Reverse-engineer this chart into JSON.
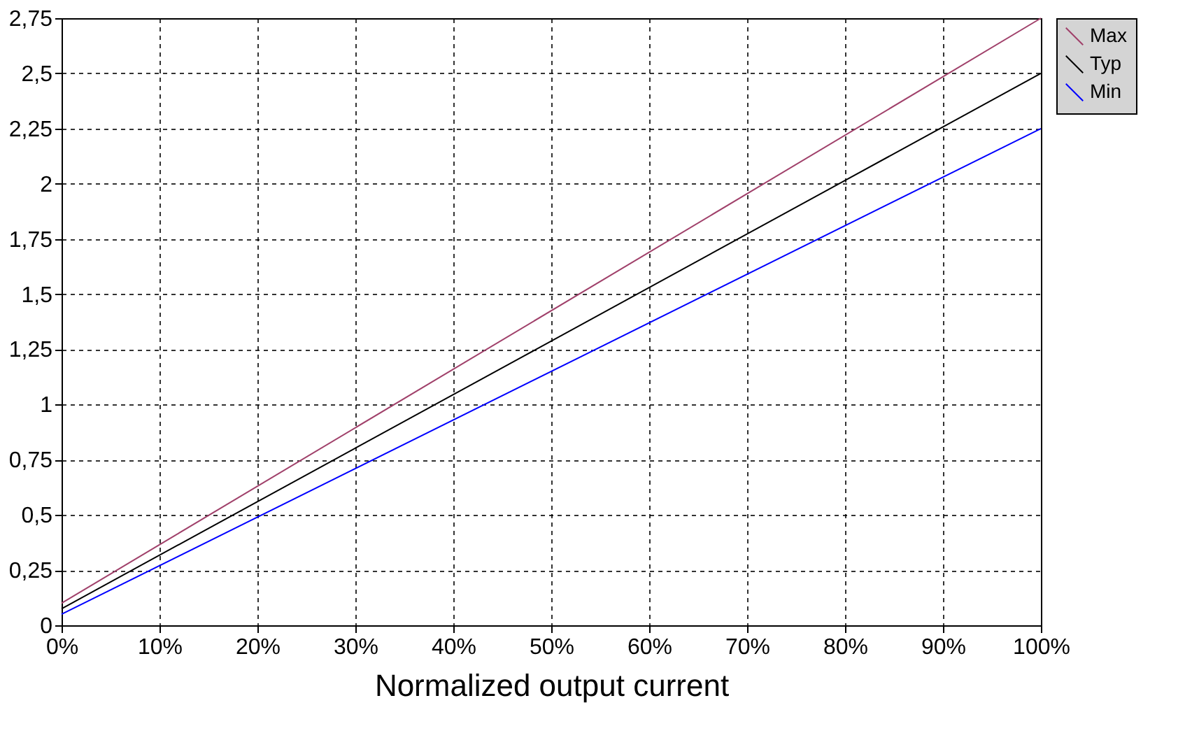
{
  "chart_data": {
    "type": "line",
    "xlabel": "Normalized output current",
    "x": [
      0,
      100
    ],
    "series": [
      {
        "name": "Max",
        "color": "#a0406a",
        "values": [
          0.1,
          2.75
        ]
      },
      {
        "name": "Typ",
        "color": "#000000",
        "values": [
          0.075,
          2.5
        ]
      },
      {
        "name": "Min",
        "color": "#0000ff",
        "values": [
          0.05,
          2.25
        ]
      }
    ],
    "xlim": [
      0,
      100
    ],
    "xticks": [
      {
        "value": 0,
        "label": "0%"
      },
      {
        "value": 10,
        "label": "10%"
      },
      {
        "value": 20,
        "label": "20%"
      },
      {
        "value": 30,
        "label": "30%"
      },
      {
        "value": 40,
        "label": "40%"
      },
      {
        "value": 50,
        "label": "50%"
      },
      {
        "value": 60,
        "label": "60%"
      },
      {
        "value": 70,
        "label": "70%"
      },
      {
        "value": 80,
        "label": "80%"
      },
      {
        "value": 90,
        "label": "90%"
      },
      {
        "value": 100,
        "label": "100%"
      }
    ],
    "ylim": [
      0,
      2.75
    ],
    "yticks": [
      0,
      {
        "value": 0.25,
        "label": "0,25"
      },
      {
        "value": 0.5,
        "label": "0,5"
      },
      {
        "value": 0.75,
        "label": "0,75"
      },
      1,
      {
        "value": 1.25,
        "label": "1,25"
      },
      {
        "value": 1.5,
        "label": "1,5"
      },
      {
        "value": 1.75,
        "label": "1,75"
      },
      2,
      {
        "value": 2.25,
        "label": "2,25"
      },
      {
        "value": 2.5,
        "label": "2,5"
      },
      {
        "value": 2.75,
        "label": "2,75"
      }
    ],
    "grid": true,
    "legend": "right",
    "line_style": "solid",
    "marker": "none"
  }
}
